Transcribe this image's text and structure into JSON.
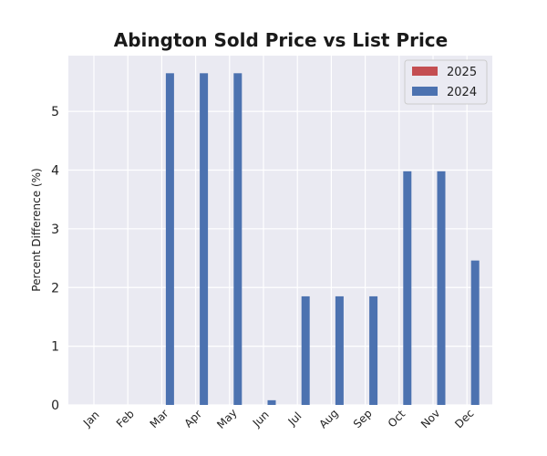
{
  "chart_data": {
    "type": "bar",
    "title": "Abington Sold Price vs List Price",
    "xlabel": "",
    "ylabel": "Percent Difference (%)",
    "categories": [
      "Jan",
      "Feb",
      "Mar",
      "Apr",
      "May",
      "Jun",
      "Jul",
      "Aug",
      "Sep",
      "Oct",
      "Nov",
      "Dec"
    ],
    "series": [
      {
        "name": "2025",
        "color": "#c44e52",
        "values": [
          0,
          0,
          0,
          0,
          0,
          0,
          0,
          0,
          0,
          0,
          0,
          0
        ]
      },
      {
        "name": "2024",
        "color": "#4c72b0",
        "values": [
          0,
          0,
          5.65,
          5.65,
          5.65,
          0.08,
          1.85,
          1.85,
          1.85,
          3.98,
          3.98,
          2.46
        ]
      }
    ],
    "ylim": [
      0,
      5.95
    ],
    "yticks": [
      0,
      1,
      2,
      3,
      4,
      5
    ],
    "grid": true,
    "legend_position": "top-right",
    "background_color": "#eaeaf2"
  }
}
